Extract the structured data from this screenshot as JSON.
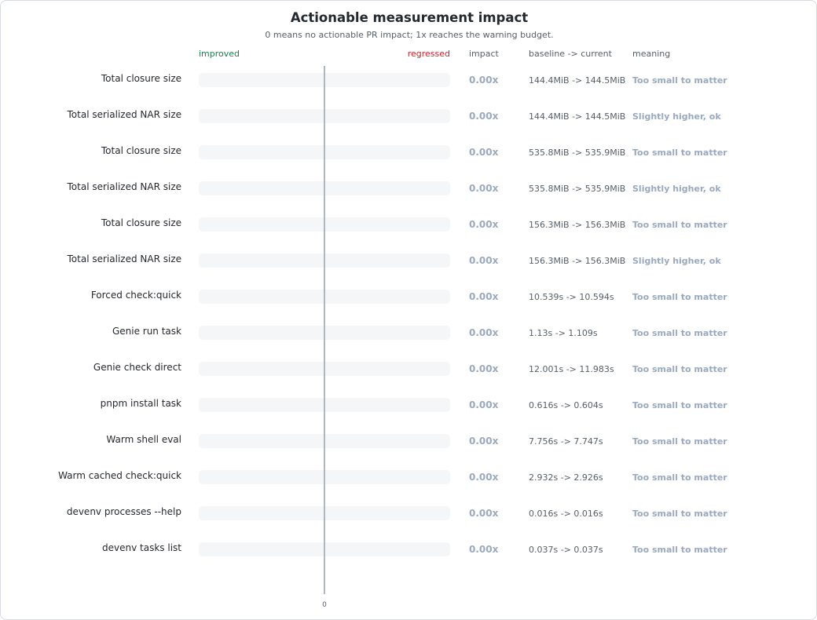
{
  "chart_data": {
    "type": "bar",
    "title": "Actionable measurement impact",
    "subtitle": "0 means no actionable PR impact; 1x reaches the warning budget.",
    "axis_labels": {
      "left": "improved",
      "right": "regressed",
      "zero": "0"
    },
    "column_headers": {
      "impact": "impact",
      "baseline": "baseline -> current",
      "meaning": "meaning"
    },
    "categories": [
      "Total closure size",
      "Total serialized NAR size",
      "Total closure size",
      "Total serialized NAR size",
      "Total closure size",
      "Total serialized NAR size",
      "Forced check:quick",
      "Genie run task",
      "Genie check direct",
      "pnpm install task",
      "Warm shell eval",
      "Warm cached check:quick",
      "devenv processes --help",
      "devenv tasks list"
    ],
    "values": [
      0,
      0,
      0,
      0,
      0,
      0,
      0,
      0,
      0,
      0,
      0,
      0,
      0,
      0
    ],
    "impact_labels": [
      "0.00x",
      "0.00x",
      "0.00x",
      "0.00x",
      "0.00x",
      "0.00x",
      "0.00x",
      "0.00x",
      "0.00x",
      "0.00x",
      "0.00x",
      "0.00x",
      "0.00x",
      "0.00x"
    ],
    "baseline_current": [
      "144.4MiB -> 144.5MiB",
      "144.4MiB -> 144.5MiB",
      "535.8MiB -> 535.9MiB",
      "535.8MiB -> 535.9MiB",
      "156.3MiB -> 156.3MiB",
      "156.3MiB -> 156.3MiB",
      "10.539s -> 10.594s",
      "1.13s -> 1.109s",
      "12.001s -> 11.983s",
      "0.616s -> 0.604s",
      "7.756s -> 7.747s",
      "2.932s -> 2.926s",
      "0.016s -> 0.016s",
      "0.037s -> 0.037s"
    ],
    "meaning": [
      "Too small to matter",
      "Slightly higher, ok",
      "Too small to matter",
      "Slightly higher, ok",
      "Too small to matter",
      "Slightly higher, ok",
      "Too small to matter",
      "Too small to matter",
      "Too small to matter",
      "Too small to matter",
      "Too small to matter",
      "Too small to matter",
      "Too small to matter",
      "Too small to matter"
    ],
    "grid": false,
    "colors": {
      "improved": "#1a7f4e",
      "regressed": "#cf222e",
      "neutral": "#9aa9c0"
    }
  }
}
